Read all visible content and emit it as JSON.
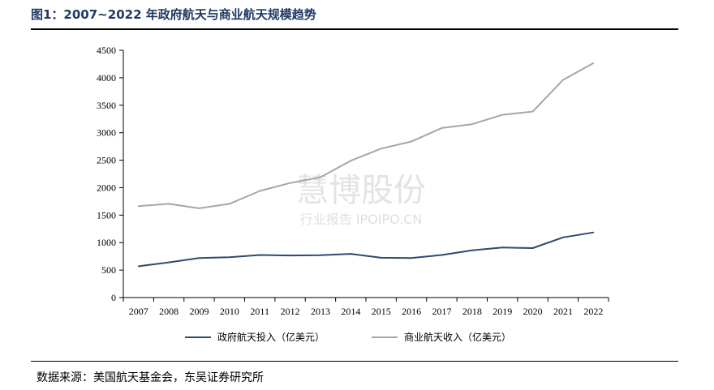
{
  "figure": {
    "title": "图1：2007~2022 年政府航天与商业航天规模趋势",
    "source": "数据来源：美国航天基金会，东吴证券研究所",
    "watermark": {
      "line1": "慧博股份",
      "line2": "行业报告 IPOIPO.CN"
    }
  },
  "chart_data": {
    "type": "line",
    "title": "",
    "xlabel": "",
    "ylabel": "",
    "categories": [
      "2007",
      "2008",
      "2009",
      "2010",
      "2011",
      "2012",
      "2013",
      "2014",
      "2015",
      "2016",
      "2017",
      "2018",
      "2019",
      "2020",
      "2021",
      "2022"
    ],
    "ylim": [
      0,
      4500
    ],
    "yticks": [
      0,
      500,
      1000,
      1500,
      2000,
      2500,
      3000,
      3500,
      4000,
      4500
    ],
    "grid": false,
    "legend_position": "bottom",
    "series": [
      {
        "name": "政府航天投入（亿美元）",
        "color": "#2e4a6f",
        "values": [
          570,
          640,
          720,
          735,
          775,
          765,
          770,
          795,
          725,
          720,
          775,
          860,
          910,
          900,
          1095,
          1185
        ]
      },
      {
        "name": "商业航天收入（亿美元）",
        "color": "#a6a6a6",
        "values": [
          1665,
          1705,
          1625,
          1705,
          1940,
          2085,
          2190,
          2490,
          2710,
          2840,
          3085,
          3155,
          3325,
          3385,
          3960,
          4265
        ]
      }
    ]
  }
}
